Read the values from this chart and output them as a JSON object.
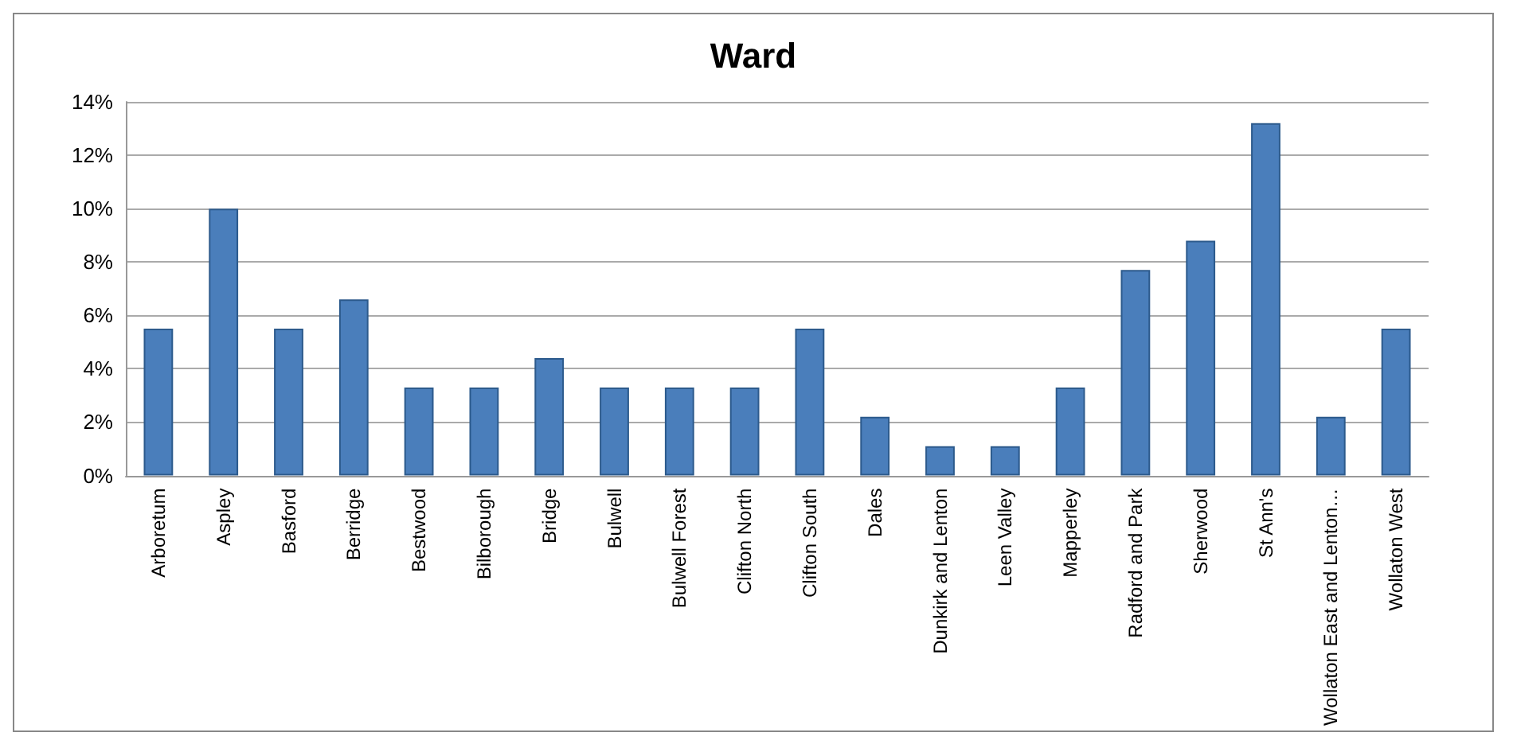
{
  "chart_data": {
    "type": "bar",
    "title": "Ward",
    "categories": [
      "Arboretum",
      "Aspley",
      "Basford",
      "Berridge",
      "Bestwood",
      "Bilborough",
      "Bridge",
      "Bulwell",
      "Bulwell Forest",
      "Clifton North",
      "Clifton South",
      "Dales",
      "Dunkirk and Lenton",
      "Leen Valley",
      "Mapperley",
      "Radford and Park",
      "Sherwood",
      "St Ann's",
      "Wollaton East and Lenton…",
      "Wollaton West"
    ],
    "values": [
      5.5,
      10,
      5.5,
      6.6,
      3.3,
      3.3,
      4.4,
      3.3,
      3.3,
      3.3,
      5.5,
      2.2,
      1.1,
      1.1,
      3.3,
      7.7,
      8.8,
      13.2,
      2.2,
      5.5
    ],
    "color": "#4a7ebb",
    "ylim": [
      0,
      14
    ],
    "yticks": [
      {
        "value": 0,
        "label": "0%"
      },
      {
        "value": 2,
        "label": "2%"
      },
      {
        "value": 4,
        "label": "4%"
      },
      {
        "value": 6,
        "label": "6%"
      },
      {
        "value": 8,
        "label": "8%"
      },
      {
        "value": 10,
        "label": "10%"
      },
      {
        "value": 12,
        "label": "12%"
      },
      {
        "value": 14,
        "label": "14%"
      }
    ],
    "grid": "y"
  }
}
